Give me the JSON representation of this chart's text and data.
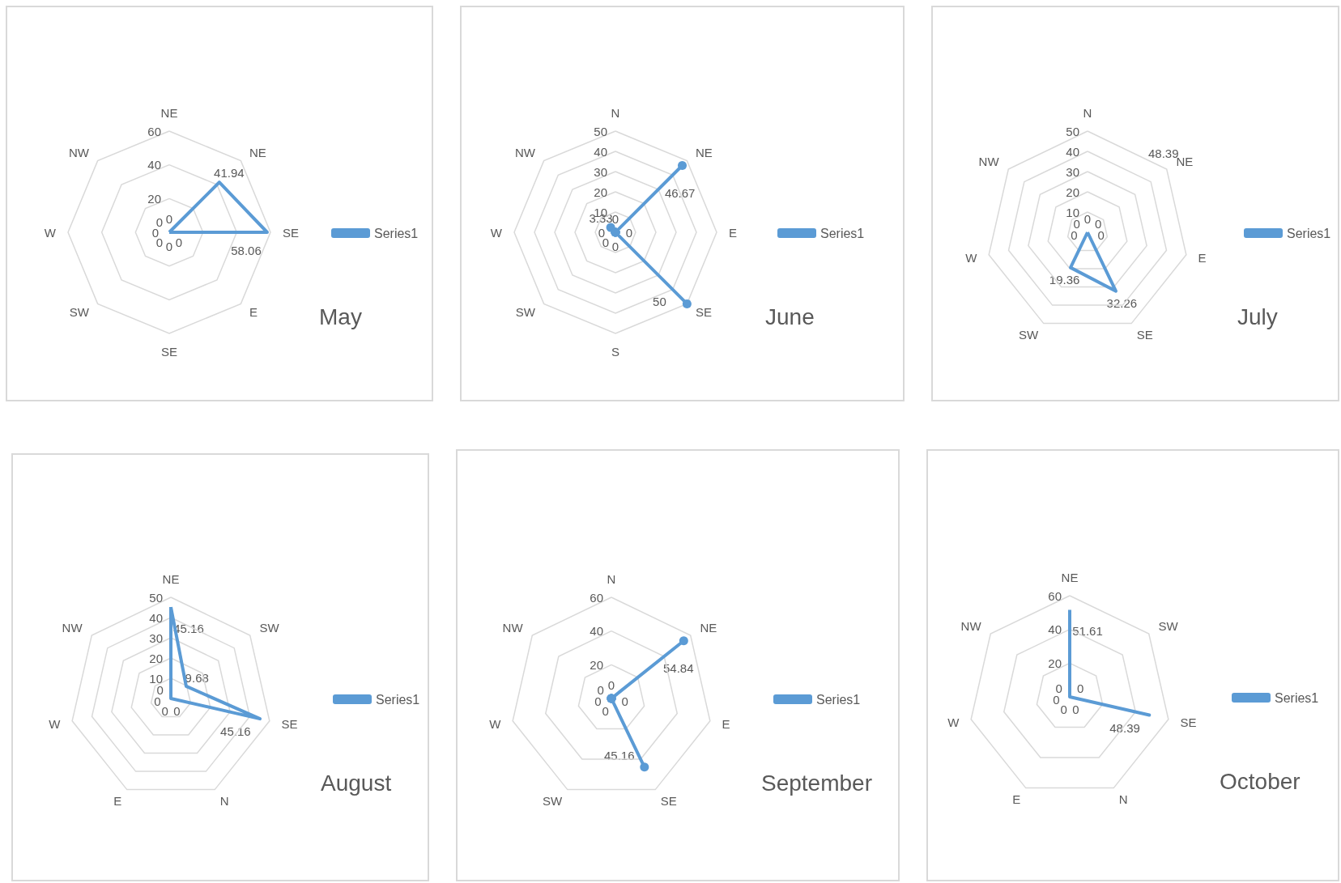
{
  "chart_data": [
    {
      "type": "radar",
      "title": "May",
      "categories": [
        "NE",
        "NE",
        "SE",
        "E",
        "SE",
        "SW",
        "W",
        "NW"
      ],
      "series": [
        {
          "name": "Series1",
          "color": "#5b9bd5",
          "values": [
            0,
            41.94,
            58.06,
            0,
            0,
            0,
            0,
            0
          ]
        }
      ],
      "ylim": [
        0,
        60
      ],
      "yticks": [
        20,
        40,
        60
      ],
      "data_labels": true,
      "legend": "right",
      "marker": "none"
    },
    {
      "type": "radar",
      "title": "June",
      "categories": [
        "N",
        "NE",
        "E",
        "SE",
        "S",
        "SW",
        "W",
        "NW"
      ],
      "series": [
        {
          "name": "Series1",
          "color": "#5b9bd5",
          "values": [
            0,
            46.67,
            0,
            50,
            0,
            0,
            0,
            3.33
          ]
        }
      ],
      "ylim": [
        0,
        50
      ],
      "yticks": [
        10,
        20,
        30,
        40,
        50
      ],
      "data_labels": true,
      "legend": "right",
      "marker": "circle"
    },
    {
      "type": "radar",
      "title": "July",
      "categories": [
        "N",
        "NE",
        "E",
        "SE",
        "SW",
        "W",
        "NW"
      ],
      "series": [
        {
          "name": "Series1",
          "color": "#5b9bd5",
          "values": [
            0,
            0,
            0,
            32.26,
            19.36,
            0,
            0
          ]
        }
      ],
      "ylim": [
        0,
        50
      ],
      "yticks": [
        10,
        20,
        30,
        40,
        50
      ],
      "data_labels": true,
      "legend": "right",
      "marker": "none",
      "annotations": [
        "48.39"
      ]
    },
    {
      "type": "radar",
      "title": "August",
      "categories": [
        "NE",
        "SW",
        "SE",
        "N",
        "E",
        "W",
        "NW"
      ],
      "series": [
        {
          "name": "Series1",
          "color": "#5b9bd5",
          "values": [
            45.16,
            9.68,
            45.16,
            0,
            0,
            0,
            0
          ]
        }
      ],
      "ylim": [
        0,
        50
      ],
      "yticks": [
        10,
        20,
        30,
        40,
        50
      ],
      "data_labels": true,
      "legend": "right",
      "marker": "none"
    },
    {
      "type": "radar",
      "title": "September",
      "categories": [
        "N",
        "NE",
        "E",
        "SE",
        "SW",
        "W",
        "NW"
      ],
      "series": [
        {
          "name": "Series1",
          "color": "#5b9bd5",
          "values": [
            0,
            54.84,
            0,
            45.16,
            0,
            0,
            0
          ]
        }
      ],
      "ylim": [
        0,
        60
      ],
      "yticks": [
        20,
        40,
        60
      ],
      "data_labels": true,
      "legend": "right",
      "marker": "circle"
    },
    {
      "type": "radar",
      "title": "October",
      "categories": [
        "NE",
        "SW",
        "SE",
        "N",
        "E",
        "W",
        "NW"
      ],
      "series": [
        {
          "name": "Series1",
          "color": "#5b9bd5",
          "values": [
            51.61,
            0,
            48.39,
            0,
            0,
            0,
            0
          ]
        }
      ],
      "ylim": [
        0,
        60
      ],
      "yticks": [
        20,
        40,
        60
      ],
      "data_labels": true,
      "legend": "right",
      "marker": "none"
    }
  ]
}
